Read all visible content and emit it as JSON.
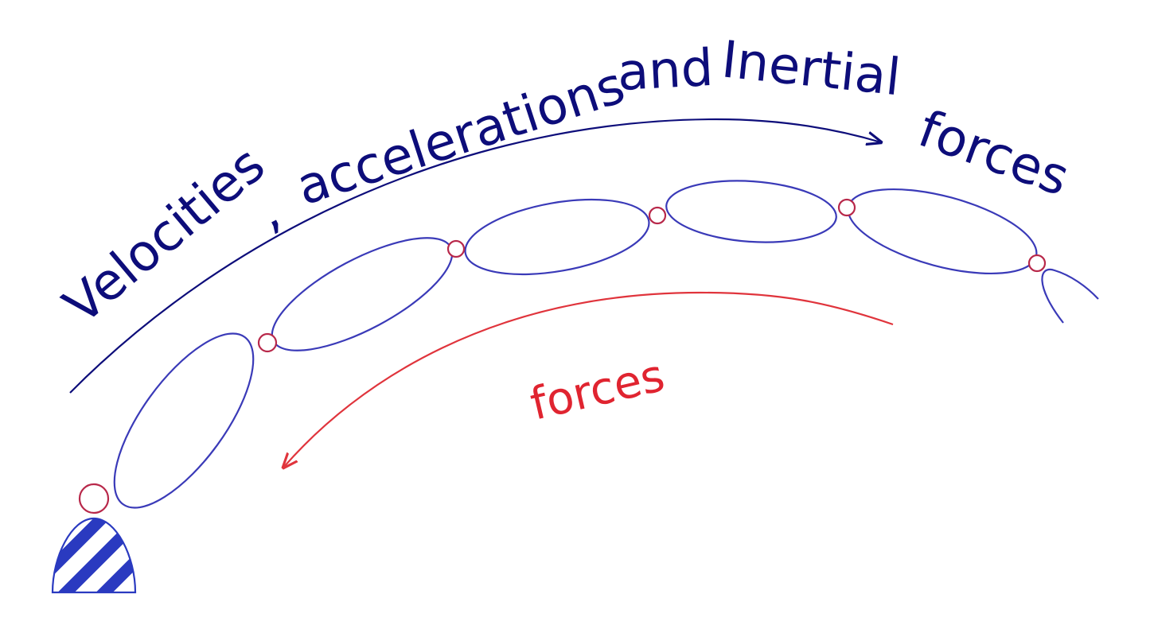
{
  "title": {
    "words": [
      {
        "text": "Velocities",
        "color": "#0d0d7a"
      },
      {
        "text": ",",
        "color": "#0d0d7a"
      },
      {
        "text": "accelerations",
        "color": "#0d0d7a"
      },
      {
        "text": "and",
        "color": "#0d0d7a"
      },
      {
        "text": "Inertial",
        "color": "#0d0d7a"
      },
      {
        "text": "forces",
        "color": "#0d0d7a"
      }
    ]
  },
  "forces_label": {
    "text": "forces",
    "color": "#e02430"
  },
  "colors": {
    "link_stroke": "#3a3ab8",
    "joint_stroke": "#b8284a",
    "top_arrow": "#0d0d7a",
    "bottom_arrow": "#e0343c",
    "base_stripes": "#2a3ac0"
  }
}
